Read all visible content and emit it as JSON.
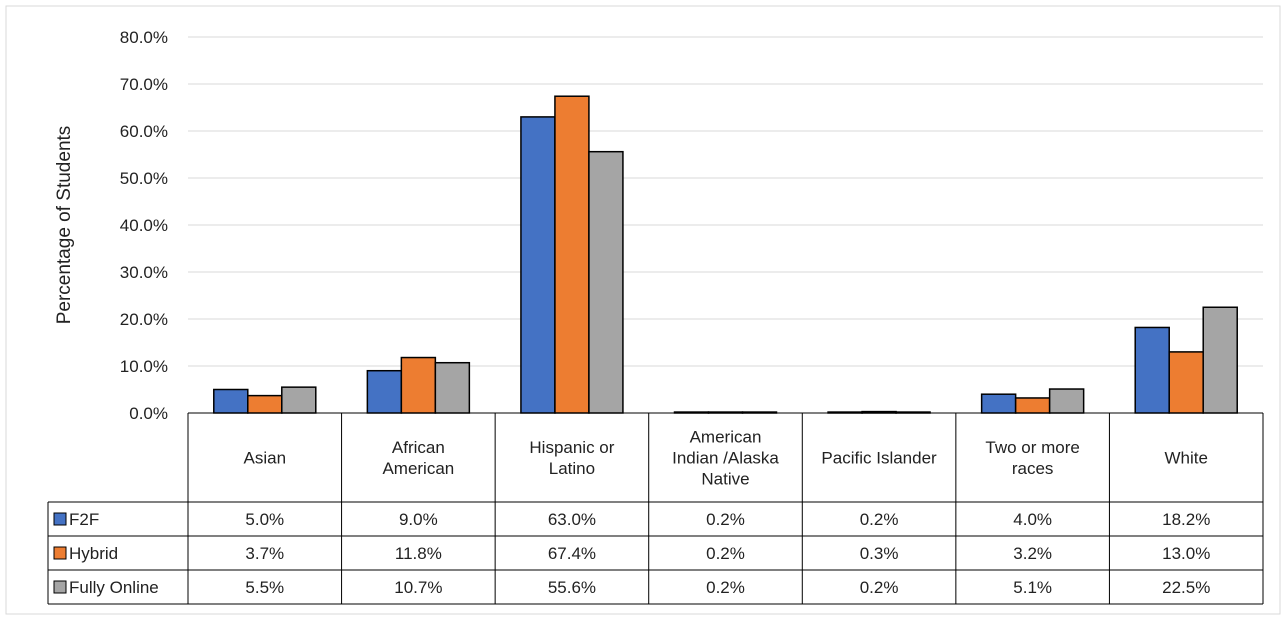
{
  "chart_data": {
    "type": "bar",
    "ylabel": "Percentage of Students",
    "ylim": [
      0,
      80
    ],
    "yticks": [
      "0.0%",
      "10.0%",
      "20.0%",
      "30.0%",
      "40.0%",
      "50.0%",
      "60.0%",
      "70.0%",
      "80.0%"
    ],
    "grid": true,
    "legend": "data-table-left",
    "categories": [
      [
        "Asian"
      ],
      [
        "African",
        "American"
      ],
      [
        "Hispanic or",
        "Latino"
      ],
      [
        "American",
        "Indian /Alaska",
        "Native"
      ],
      [
        "Pacific Islander"
      ],
      [
        "Two or more",
        "races"
      ],
      [
        "White"
      ]
    ],
    "series": [
      {
        "name": "F2F",
        "color": "#4472C4",
        "values": [
          5.0,
          9.0,
          63.0,
          0.2,
          0.2,
          4.0,
          18.2
        ],
        "labels": [
          "5.0%",
          "9.0%",
          "63.0%",
          "0.2%",
          "0.2%",
          "4.0%",
          "18.2%"
        ]
      },
      {
        "name": "Hybrid",
        "color": "#ED7D31",
        "values": [
          3.7,
          11.8,
          67.4,
          0.2,
          0.3,
          3.2,
          13.0
        ],
        "labels": [
          "3.7%",
          "11.8%",
          "67.4%",
          "0.2%",
          "0.3%",
          "3.2%",
          "13.0%"
        ]
      },
      {
        "name": "Fully Online",
        "color": "#A5A5A5",
        "values": [
          5.5,
          10.7,
          55.6,
          0.2,
          0.2,
          5.1,
          22.5
        ],
        "labels": [
          "5.5%",
          "10.7%",
          "55.6%",
          "0.2%",
          "0.2%",
          "5.1%",
          "22.5%"
        ]
      }
    ]
  }
}
